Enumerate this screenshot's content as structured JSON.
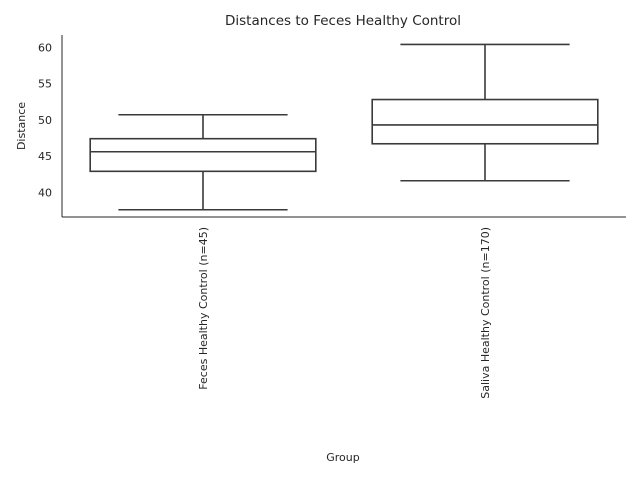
{
  "chart_data": {
    "type": "box",
    "title": "Distances to Feces Healthy Control",
    "xlabel": "Group",
    "ylabel": "Distance",
    "categories": [
      "Feces Healthy Control (n=45)",
      "Saliva Healthy Control (n=170)"
    ],
    "boxes": [
      {
        "whisker_low": 37.6,
        "q1": 42.9,
        "median": 45.6,
        "q3": 47.4,
        "whisker_high": 50.7
      },
      {
        "whisker_low": 41.6,
        "q1": 46.7,
        "median": 49.3,
        "q3": 52.8,
        "whisker_high": 60.4
      }
    ],
    "ylim": [
      36.6,
      61.7
    ],
    "yticks": [
      40,
      45,
      50,
      55,
      60
    ],
    "grid": false,
    "style": {
      "line_color": "#3a3a3a",
      "background": "#ffffff"
    }
  }
}
